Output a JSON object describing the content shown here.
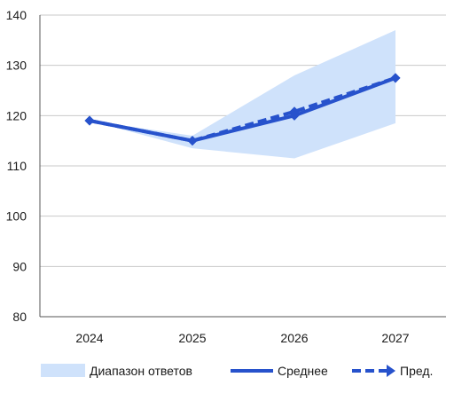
{
  "chart_data": {
    "type": "line",
    "categories": [
      "2024",
      "2025",
      "2026",
      "2027"
    ],
    "ylim": [
      80,
      140
    ],
    "yticks": [
      80,
      90,
      100,
      110,
      120,
      130,
      140
    ],
    "grid": true,
    "legend_position": "bottom",
    "range": {
      "name": "Диапазон ответов",
      "color": "#cfe2fb",
      "low": [
        119,
        113.5,
        111.5,
        118.5
      ],
      "high": [
        119,
        116,
        128,
        137
      ]
    },
    "series": [
      {
        "name": "Среднее",
        "values": [
          119,
          115,
          120,
          127.5
        ],
        "color": "#2752cc",
        "style": "solid"
      },
      {
        "name": "Пред.",
        "values": [
          119,
          115,
          120.8,
          127.5
        ],
        "color": "#2752cc",
        "style": "dashed"
      }
    ]
  }
}
